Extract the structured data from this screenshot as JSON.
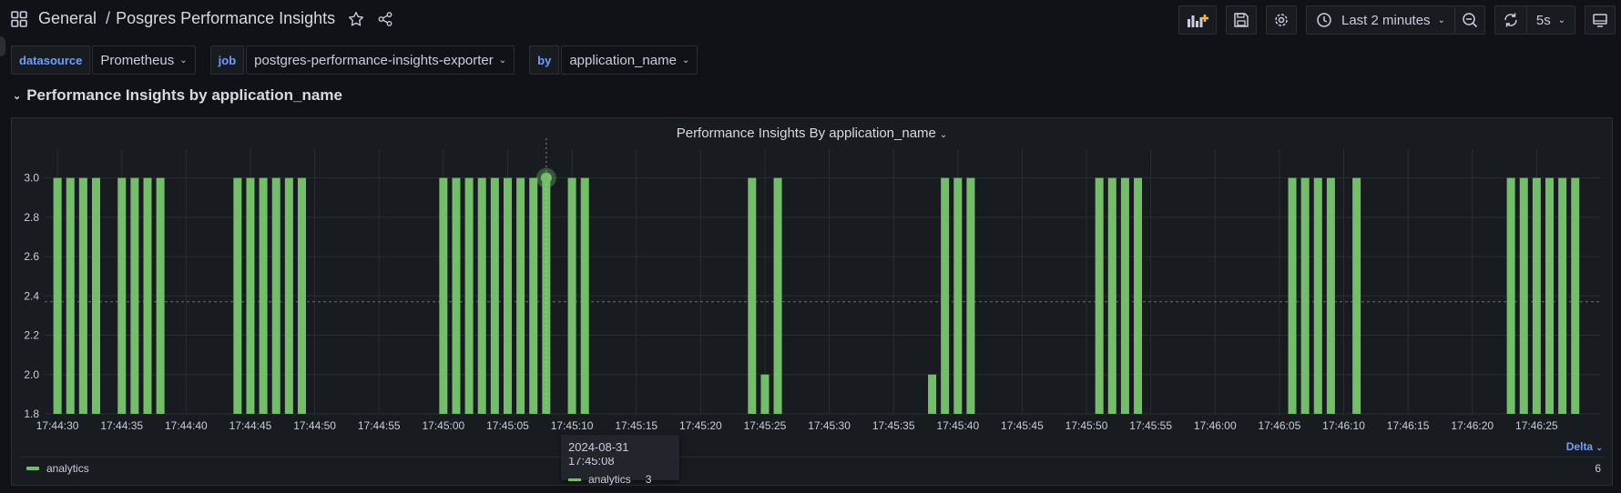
{
  "breadcrumb": {
    "folder": "General",
    "separator": "/",
    "title": "Posgres Performance Insights"
  },
  "toolbar": {
    "time_range": "Last 2 minutes",
    "refresh_interval": "5s"
  },
  "variables": [
    {
      "label": "datasource",
      "value": "Prometheus"
    },
    {
      "label": "job",
      "value": "postgres-performance-insights-exporter"
    },
    {
      "label": "by",
      "value": "application_name"
    }
  ],
  "row": {
    "title": "Performance Insights by application_name"
  },
  "panel": {
    "title": "Performance Insights By application_name"
  },
  "tooltip": {
    "time": "2024-08-31 17:45:08",
    "series": "analytics",
    "value": "3"
  },
  "legend": {
    "header": "Delta",
    "series": "analytics",
    "value": "6"
  },
  "colors": {
    "series": "#73bf69",
    "accent": "#6e9fff",
    "background": "#111217",
    "panel": "#181b1f"
  },
  "chart_data": {
    "type": "bar",
    "ylim": [
      1.8,
      3.1
    ],
    "yticks": [
      "1.8",
      "2.0",
      "2.2",
      "2.4",
      "2.6",
      "2.8",
      "3.0"
    ],
    "xticks": [
      "17:44:30",
      "17:44:35",
      "17:44:40",
      "17:44:45",
      "17:44:50",
      "17:44:55",
      "17:45:00",
      "17:45:05",
      "17:45:10",
      "17:45:15",
      "17:45:20",
      "17:45:25",
      "17:45:30",
      "17:45:35",
      "17:45:40",
      "17:45:45",
      "17:45:50",
      "17:45:55",
      "17:46:00",
      "17:46:05",
      "17:46:10",
      "17:46:15",
      "17:46:20",
      "17:46:25"
    ],
    "threshold": 2.37,
    "grid": true,
    "series": [
      {
        "name": "analytics",
        "x": [
          "17:44:30",
          "17:44:31",
          "17:44:32",
          "17:44:33",
          "17:44:35",
          "17:44:36",
          "17:44:37",
          "17:44:38",
          "17:44:44",
          "17:44:45",
          "17:44:46",
          "17:44:47",
          "17:44:48",
          "17:44:49",
          "17:45:00",
          "17:45:01",
          "17:45:02",
          "17:45:03",
          "17:45:04",
          "17:45:05",
          "17:45:06",
          "17:45:07",
          "17:45:08",
          "17:45:10",
          "17:45:11",
          "17:45:24",
          "17:45:25",
          "17:45:26",
          "17:45:38",
          "17:45:39",
          "17:45:40",
          "17:45:41",
          "17:45:51",
          "17:45:52",
          "17:45:53",
          "17:45:54",
          "17:46:06",
          "17:46:07",
          "17:46:08",
          "17:46:09",
          "17:46:11",
          "17:46:23",
          "17:46:24",
          "17:46:25",
          "17:46:26",
          "17:46:27",
          "17:46:28"
        ],
        "values": [
          3,
          3,
          3,
          3,
          3,
          3,
          3,
          3,
          3,
          3,
          3,
          3,
          3,
          3,
          3,
          3,
          3,
          3,
          3,
          3,
          3,
          3,
          3,
          3,
          3,
          3,
          2,
          3,
          2,
          3,
          3,
          3,
          3,
          3,
          3,
          3,
          3,
          3,
          3,
          3,
          3,
          3,
          3,
          3,
          3,
          3,
          3
        ]
      }
    ],
    "hover": {
      "x": "17:45:08",
      "value": 3
    }
  }
}
